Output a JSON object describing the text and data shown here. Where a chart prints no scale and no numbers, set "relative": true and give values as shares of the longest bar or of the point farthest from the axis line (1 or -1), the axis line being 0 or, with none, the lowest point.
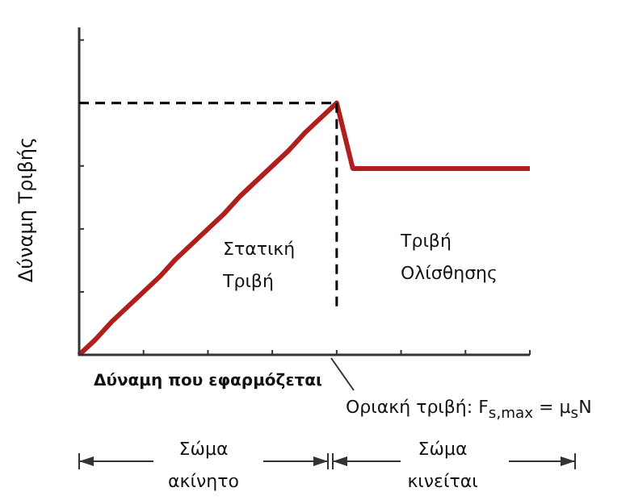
{
  "chart_data": {
    "type": "line",
    "relative": true,
    "xlabel": "Δύναμη που εφαρμόζεται",
    "ylabel": "Δύναμη Τριβής",
    "categories": [
      null,
      null,
      null,
      null,
      null,
      null,
      null,
      null,
      null,
      null,
      null,
      null,
      null,
      null,
      null,
      null,
      null,
      null,
      null,
      null,
      null,
      null,
      null,
      null,
      null,
      null,
      null,
      null,
      null
    ],
    "series": [
      {
        "color": "#b01e1e",
        "values": [
          0,
          0.06,
          0.13,
          0.19,
          0.25,
          0.31,
          0.38,
          0.44,
          0.5,
          0.56,
          0.63,
          0.69,
          0.75,
          0.81,
          0.88,
          0.94,
          1,
          0.74,
          0.74,
          0.74,
          0.74,
          0.74,
          0.74,
          0.74,
          0.74,
          0.74,
          0.74,
          0.74,
          0.74
        ]
      }
    ],
    "ref_lines": [
      {
        "axis": "y",
        "value": 1,
        "color": "#000000",
        "line_style": "dashed"
      }
    ],
    "annotations": [
      "Στατική Τριβή",
      "Τριβή Ολίσθησης",
      "Οριακή τριβή: F$_{s,max}$ = μ$_{s}$N",
      "Σώμα ακίνητο",
      "Σώμα κινείται"
    ],
    "marker": "none",
    "line_style": "solid",
    "legend": false
  }
}
